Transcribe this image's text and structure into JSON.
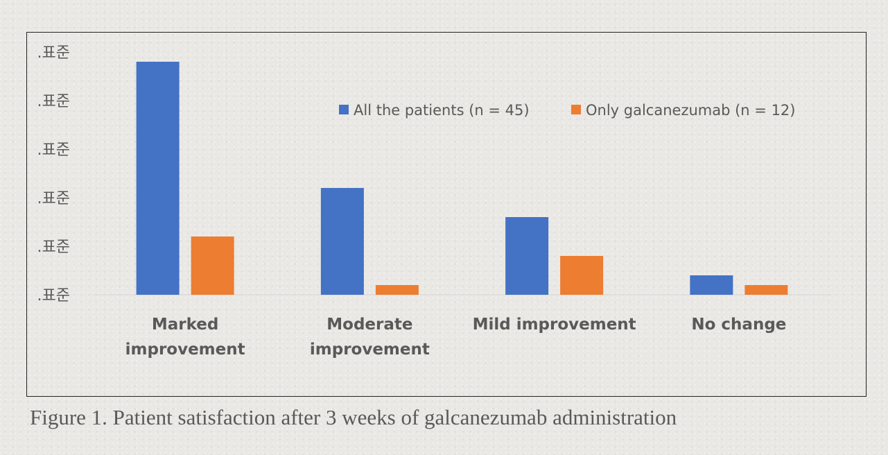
{
  "caption": "Figure 1. Patient satisfaction after 3 weeks of galcanezumab administration",
  "chart_data": {
    "type": "bar",
    "title": "",
    "xlabel": "",
    "ylabel": "",
    "categories": [
      [
        "Marked",
        "improvement"
      ],
      [
        "Moderate",
        "improvement"
      ],
      [
        "Mild improvement"
      ],
      [
        "No change"
      ]
    ],
    "series": [
      {
        "name": "All the patients (n = 45)",
        "color": "#4472C4",
        "values": [
          24,
          11,
          8,
          2
        ]
      },
      {
        "name": "Only galcanezumab (n = 12)",
        "color": "#ED7D31",
        "values": [
          6,
          1,
          4,
          1
        ]
      }
    ],
    "y_tick_labels": [
      ".표준",
      ".표준",
      ".표준",
      ".표준",
      ".표준",
      ".표준"
    ],
    "ylim": [
      0,
      25
    ],
    "legend_position": "top-right",
    "grid": false
  }
}
